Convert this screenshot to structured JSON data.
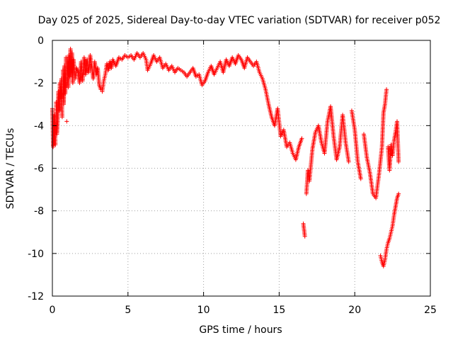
{
  "chart_data": {
    "type": "scatter",
    "title": "Day 025 of 2025, Sidereal Day-to-day VTEC variation (SDTVAR) for receiver p052",
    "xlabel": "GPS time / hours",
    "ylabel": "SDTVAR / TECUs",
    "xlim": [
      0,
      25
    ],
    "ylim": [
      -12,
      0
    ],
    "xticks": [
      0,
      5,
      10,
      15,
      20,
      25
    ],
    "xtick_labels": [
      "0",
      "5",
      "10",
      "15",
      "20",
      "25"
    ],
    "yticks": [
      -12,
      -10,
      -8,
      -6,
      -4,
      -2,
      0
    ],
    "ytick_labels": [
      "-12",
      "-10",
      "-8",
      "-6",
      "-4",
      "-2",
      "0"
    ],
    "grid": true,
    "marker": "+",
    "series": [
      {
        "name": "SDTVAR",
        "color": "#ff0000",
        "points": [
          [
            0.0,
            -3.2
          ],
          [
            0.05,
            -5.0
          ],
          [
            0.1,
            -4.6
          ],
          [
            0.15,
            -3.5
          ],
          [
            0.2,
            -4.9
          ],
          [
            0.25,
            -2.9
          ],
          [
            0.3,
            -4.4
          ],
          [
            0.35,
            -3.8
          ],
          [
            0.4,
            -2.4
          ],
          [
            0.45,
            -3.3
          ],
          [
            0.5,
            -2.0
          ],
          [
            0.55,
            -2.7
          ],
          [
            0.6,
            -1.8
          ],
          [
            0.65,
            -3.6
          ],
          [
            0.7,
            -1.4
          ],
          [
            0.75,
            -3.0
          ],
          [
            0.8,
            -1.2
          ],
          [
            0.85,
            -2.5
          ],
          [
            0.9,
            -0.8
          ],
          [
            0.95,
            -3.8
          ],
          [
            1.0,
            -1.0
          ],
          [
            1.05,
            -2.2
          ],
          [
            1.1,
            -0.7
          ],
          [
            1.15,
            -1.7
          ],
          [
            1.2,
            -0.4
          ],
          [
            1.25,
            -1.5
          ],
          [
            1.3,
            -0.6
          ],
          [
            1.35,
            -2.0
          ],
          [
            1.4,
            -0.9
          ],
          [
            1.5,
            -1.8
          ],
          [
            1.6,
            -1.3
          ],
          [
            1.7,
            -1.5
          ],
          [
            1.8,
            -2.0
          ],
          [
            1.9,
            -1.0
          ],
          [
            2.0,
            -1.9
          ],
          [
            2.1,
            -0.8
          ],
          [
            2.2,
            -1.6
          ],
          [
            2.3,
            -0.9
          ],
          [
            2.4,
            -1.5
          ],
          [
            2.5,
            -0.7
          ],
          [
            2.6,
            -1.2
          ],
          [
            2.7,
            -1.8
          ],
          [
            2.8,
            -1.0
          ],
          [
            2.9,
            -1.6
          ],
          [
            3.0,
            -1.3
          ],
          [
            3.1,
            -2.1
          ],
          [
            3.2,
            -2.3
          ],
          [
            3.3,
            -2.4
          ],
          [
            3.4,
            -1.9
          ],
          [
            3.5,
            -1.6
          ],
          [
            3.6,
            -1.1
          ],
          [
            3.7,
            -1.4
          ],
          [
            3.8,
            -1.0
          ],
          [
            3.9,
            -1.3
          ],
          [
            4.0,
            -0.9
          ],
          [
            4.2,
            -1.2
          ],
          [
            4.4,
            -0.8
          ],
          [
            4.6,
            -0.9
          ],
          [
            4.8,
            -0.7
          ],
          [
            5.0,
            -0.8
          ],
          [
            5.2,
            -0.7
          ],
          [
            5.4,
            -0.9
          ],
          [
            5.6,
            -0.6
          ],
          [
            5.8,
            -0.8
          ],
          [
            6.0,
            -0.6
          ],
          [
            6.2,
            -0.9
          ],
          [
            6.3,
            -1.4
          ],
          [
            6.5,
            -1.1
          ],
          [
            6.7,
            -0.7
          ],
          [
            6.9,
            -1.0
          ],
          [
            7.1,
            -0.8
          ],
          [
            7.3,
            -1.3
          ],
          [
            7.5,
            -1.1
          ],
          [
            7.7,
            -1.4
          ],
          [
            7.9,
            -1.2
          ],
          [
            8.1,
            -1.5
          ],
          [
            8.3,
            -1.3
          ],
          [
            8.5,
            -1.4
          ],
          [
            8.7,
            -1.5
          ],
          [
            8.9,
            -1.7
          ],
          [
            9.1,
            -1.5
          ],
          [
            9.3,
            -1.3
          ],
          [
            9.5,
            -1.7
          ],
          [
            9.7,
            -1.6
          ],
          [
            9.9,
            -2.1
          ],
          [
            10.1,
            -1.9
          ],
          [
            10.3,
            -1.5
          ],
          [
            10.5,
            -1.2
          ],
          [
            10.7,
            -1.6
          ],
          [
            10.9,
            -1.3
          ],
          [
            11.1,
            -1.0
          ],
          [
            11.3,
            -1.5
          ],
          [
            11.5,
            -0.9
          ],
          [
            11.7,
            -1.2
          ],
          [
            11.9,
            -0.8
          ],
          [
            12.1,
            -1.1
          ],
          [
            12.3,
            -0.7
          ],
          [
            12.5,
            -0.9
          ],
          [
            12.7,
            -1.3
          ],
          [
            12.9,
            -0.8
          ],
          [
            13.1,
            -1.0
          ],
          [
            13.3,
            -1.2
          ],
          [
            13.5,
            -1.0
          ],
          [
            13.7,
            -1.5
          ],
          [
            13.9,
            -1.8
          ],
          [
            14.1,
            -2.3
          ],
          [
            14.3,
            -3.0
          ],
          [
            14.5,
            -3.6
          ],
          [
            14.7,
            -4.0
          ],
          [
            14.9,
            -3.2
          ],
          [
            15.1,
            -4.5
          ],
          [
            15.3,
            -4.2
          ],
          [
            15.5,
            -5.0
          ],
          [
            15.7,
            -4.8
          ],
          [
            15.9,
            -5.3
          ],
          [
            16.1,
            -5.6
          ],
          [
            16.3,
            -5.0
          ],
          [
            16.5,
            -4.6
          ],
          [
            16.6,
            -8.6
          ],
          [
            16.7,
            -9.2
          ],
          [
            16.8,
            -7.2
          ],
          [
            16.9,
            -6.1
          ],
          [
            17.0,
            -6.6
          ],
          [
            17.2,
            -5.1
          ],
          [
            17.4,
            -4.3
          ],
          [
            17.6,
            -4.0
          ],
          [
            17.8,
            -4.8
          ],
          [
            18.0,
            -5.3
          ],
          [
            18.2,
            -3.8
          ],
          [
            18.4,
            -3.1
          ],
          [
            18.6,
            -4.5
          ],
          [
            18.8,
            -5.6
          ],
          [
            19.0,
            -5.0
          ],
          [
            19.2,
            -3.5
          ],
          [
            19.4,
            -4.8
          ],
          [
            19.6,
            -5.7
          ],
          [
            19.8,
            -3.3
          ],
          [
            20.0,
            -4.2
          ],
          [
            20.2,
            -5.7
          ],
          [
            20.4,
            -6.5
          ],
          [
            20.6,
            -4.4
          ],
          [
            20.8,
            -5.5
          ],
          [
            21.0,
            -6.2
          ],
          [
            21.2,
            -7.2
          ],
          [
            21.4,
            -7.4
          ],
          [
            21.6,
            -6.3
          ],
          [
            21.8,
            -5.0
          ],
          [
            21.9,
            -3.4
          ],
          [
            22.0,
            -3.0
          ],
          [
            22.1,
            -2.3
          ],
          [
            22.2,
            -5.0
          ],
          [
            22.3,
            -6.1
          ],
          [
            22.4,
            -4.9
          ],
          [
            22.5,
            -5.4
          ],
          [
            22.6,
            -4.7
          ],
          [
            22.7,
            -4.3
          ],
          [
            22.8,
            -3.8
          ],
          [
            22.9,
            -5.7
          ],
          [
            21.7,
            -10.1
          ],
          [
            21.8,
            -10.4
          ],
          [
            21.9,
            -10.6
          ],
          [
            22.0,
            -10.3
          ],
          [
            22.1,
            -9.8
          ],
          [
            22.2,
            -9.5
          ],
          [
            22.3,
            -9.3
          ],
          [
            22.4,
            -9.0
          ],
          [
            22.5,
            -8.7
          ],
          [
            22.6,
            -8.2
          ],
          [
            22.7,
            -7.8
          ],
          [
            22.8,
            -7.4
          ],
          [
            22.9,
            -7.2
          ]
        ]
      }
    ]
  }
}
